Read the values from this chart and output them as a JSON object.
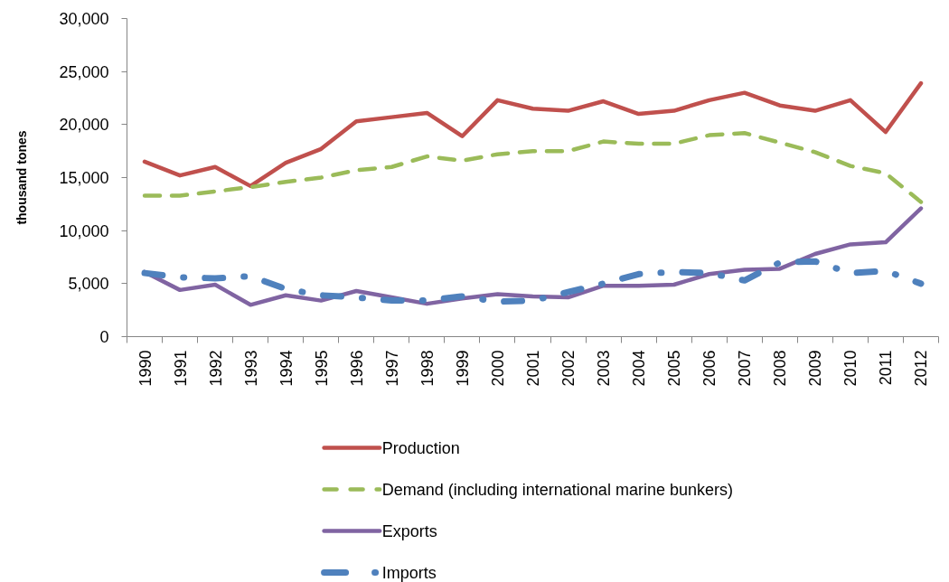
{
  "chart_data": {
    "type": "line",
    "ylabel": "thousand tones",
    "categories": [
      "1990",
      "1991",
      "1992",
      "1993",
      "1994",
      "1995",
      "1996",
      "1997",
      "1998",
      "1999",
      "2000",
      "2001",
      "2002",
      "2003",
      "2004",
      "2005",
      "2006",
      "2007",
      "2008",
      "2009",
      "2010",
      "2011",
      "2012"
    ],
    "ylim": [
      0,
      30000
    ],
    "yticks": [
      0,
      {
        "value": 5000,
        "label": "5,000"
      },
      {
        "value": 10000,
        "label": "10,000"
      },
      {
        "value": 15000,
        "label": "15,000"
      },
      {
        "value": 20000,
        "label": "20,000"
      },
      {
        "value": 25000,
        "label": "25,000"
      },
      {
        "value": 30000,
        "label": "30,000"
      }
    ],
    "series": [
      {
        "name": "Production",
        "color": "#c0504d",
        "line_style": "solid",
        "values": [
          16500,
          15200,
          16000,
          14200,
          16400,
          17700,
          20300,
          20700,
          21100,
          18900,
          22300,
          21500,
          21300,
          22200,
          21000,
          21300,
          22300,
          23000,
          21800,
          21300,
          22300,
          19300,
          23900
        ]
      },
      {
        "name": "Demand (including international marine bunkers)",
        "color": "#9bbb59",
        "line_style": "dashed",
        "values": [
          13300,
          13300,
          13700,
          14100,
          14600,
          15000,
          15700,
          16000,
          17000,
          16600,
          17200,
          17500,
          17500,
          18400,
          18200,
          18200,
          19000,
          19200,
          18300,
          17400,
          16100,
          15400,
          12700
        ]
      },
      {
        "name": "Exports",
        "color": "#8064a2",
        "line_style": "solid",
        "values": [
          6100,
          4400,
          4900,
          3000,
          3900,
          3400,
          4300,
          3700,
          3100,
          3600,
          4000,
          3800,
          3700,
          4800,
          4800,
          4900,
          5900,
          6300,
          6400,
          7800,
          8700,
          8900,
          12100
        ]
      },
      {
        "name": "Imports",
        "color": "#4f81bd",
        "line_style": "dashdot",
        "values": [
          6000,
          5600,
          5500,
          5700,
          4500,
          3900,
          3700,
          3400,
          3400,
          3800,
          3300,
          3400,
          4200,
          5000,
          5900,
          6100,
          6000,
          5300,
          7000,
          7100,
          6000,
          6200,
          5000
        ]
      }
    ],
    "legend": "bottom",
    "grid": false,
    "marker": "none"
  }
}
